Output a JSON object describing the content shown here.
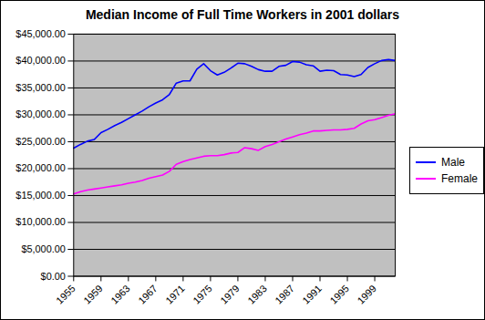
{
  "chart_data": {
    "type": "line",
    "title": "Median Income of Full Time Workers in 2001 dollars",
    "x": [
      1955,
      1956,
      1957,
      1958,
      1959,
      1960,
      1961,
      1962,
      1963,
      1964,
      1965,
      1966,
      1967,
      1968,
      1969,
      1970,
      1971,
      1972,
      1973,
      1974,
      1975,
      1976,
      1977,
      1978,
      1979,
      1980,
      1981,
      1982,
      1983,
      1984,
      1985,
      1986,
      1987,
      1988,
      1989,
      1990,
      1991,
      1992,
      1993,
      1994,
      1995,
      1996,
      1997,
      1998,
      1999,
      2000,
      2001,
      2002
    ],
    "series": [
      {
        "name": "Male",
        "color": "#0000ff",
        "values": [
          23800,
          24500,
          25100,
          25400,
          26700,
          27300,
          28000,
          28600,
          29300,
          30000,
          30700,
          31500,
          32200,
          32800,
          33800,
          35900,
          36300,
          36300,
          38500,
          39500,
          38200,
          37400,
          37900,
          38700,
          39600,
          39500,
          39000,
          38400,
          38100,
          38100,
          39000,
          39200,
          39900,
          39800,
          39300,
          39100,
          38100,
          38300,
          38200,
          37500,
          37400,
          37100,
          37500,
          38800,
          39500,
          40100,
          40300,
          40100
        ]
      },
      {
        "name": "Female",
        "color": "#ff00ff",
        "values": [
          15300,
          15700,
          16000,
          16200,
          16400,
          16600,
          16800,
          17000,
          17300,
          17500,
          17800,
          18200,
          18500,
          18800,
          19500,
          20800,
          21300,
          21700,
          22000,
          22300,
          22400,
          22400,
          22600,
          22900,
          23000,
          23900,
          23700,
          23400,
          24100,
          24500,
          25000,
          25500,
          25900,
          26300,
          26600,
          27000,
          27000,
          27100,
          27200,
          27200,
          27300,
          27500,
          28300,
          28900,
          29100,
          29500,
          29900,
          30200
        ]
      }
    ],
    "xlim": [
      1955,
      2002
    ],
    "xticks": [
      1955,
      1959,
      1963,
      1967,
      1971,
      1975,
      1979,
      1983,
      1987,
      1991,
      1995,
      1999
    ],
    "ylim": [
      0,
      45000
    ],
    "yticks": [
      {
        "value": 0,
        "label": "$0.00"
      },
      {
        "value": 5000,
        "label": "$5,000.00"
      },
      {
        "value": 10000,
        "label": "$10,000.00"
      },
      {
        "value": 15000,
        "label": "$15,000.00"
      },
      {
        "value": 20000,
        "label": "$20,000.00"
      },
      {
        "value": 25000,
        "label": "$25,000.00"
      },
      {
        "value": 30000,
        "label": "$30,000.00"
      },
      {
        "value": 35000,
        "label": "$35,000.00"
      },
      {
        "value": 40000,
        "label": "$40,000.00"
      },
      {
        "value": 45000,
        "label": "$45,000.00"
      }
    ],
    "grid": true,
    "legend": "right"
  }
}
